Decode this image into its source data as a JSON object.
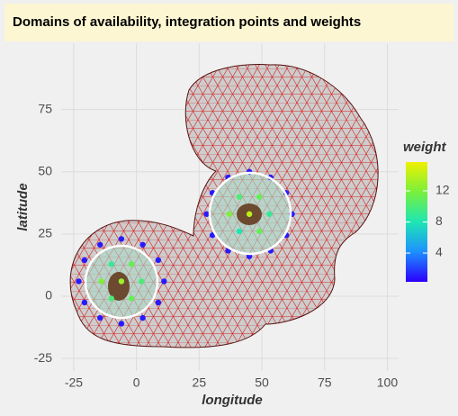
{
  "chart_data": {
    "type": "scatter",
    "title": "Domains of availability, integration points and weights",
    "xlabel": "longitude",
    "ylabel": "latitude",
    "xlim": [
      -30,
      104.5
    ],
    "ylim": [
      -30,
      101.6
    ],
    "xticks": [
      -25,
      0,
      25,
      50,
      75,
      100
    ],
    "yticks": [
      -25,
      0,
      25,
      50,
      75
    ],
    "grid": true,
    "colorbar_title": "weight",
    "colorlim": [
      0.3,
      15.7
    ],
    "colorticks": [
      4,
      8,
      12
    ],
    "colormap": [
      "#2a00ff",
      "#1e90ff",
      "#1ee6b4",
      "#78f03c",
      "#f0f000"
    ],
    "x": [
      11,
      8.7,
      2.5,
      -6,
      -14.5,
      -20.7,
      -23,
      -20.7,
      -14.5,
      -6,
      2.5,
      8.7,
      -6,
      2,
      -2,
      -10,
      -14,
      -10,
      -2,
      62,
      59.7,
      53.5,
      45,
      36.5,
      30.3,
      28,
      30.3,
      36.5,
      45,
      53.5,
      59.7,
      45,
      53,
      49,
      41,
      37,
      41,
      49
    ],
    "y": [
      6,
      14.5,
      20.7,
      23,
      20.7,
      14.5,
      6,
      -2.5,
      -8.7,
      -11,
      -8.7,
      -2.5,
      6,
      6,
      12.9,
      12.9,
      6,
      -0.9,
      -0.9,
      33,
      41.5,
      47.7,
      50,
      47.7,
      41.5,
      33,
      24.5,
      18.3,
      16,
      18.3,
      24.5,
      33,
      33,
      39.9,
      39.9,
      33,
      26.1,
      26.1
    ],
    "weight": [
      1,
      1,
      1,
      1,
      1,
      1,
      1,
      1,
      1,
      1,
      1,
      1,
      13,
      10,
      11,
      9,
      12,
      10,
      11,
      1,
      1,
      1,
      1,
      1,
      1,
      1,
      1,
      1,
      1,
      1,
      1,
      14,
      9,
      11,
      10,
      12,
      8,
      11
    ]
  }
}
